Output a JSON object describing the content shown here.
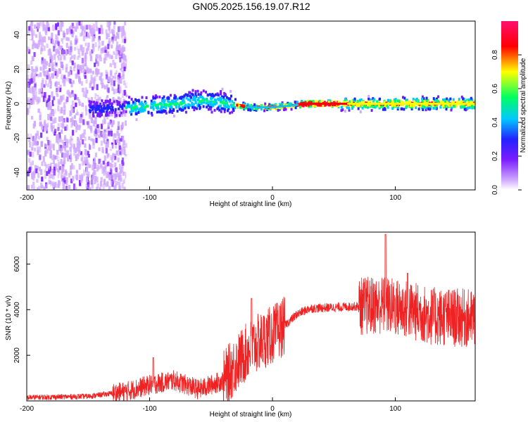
{
  "title": "GN05.2025.156.19.07.R12",
  "chart_data": [
    {
      "type": "heatmap",
      "xlabel": "Height of straight line (km)",
      "ylabel": "Frequency (Hz)",
      "xlim": [
        -200,
        165
      ],
      "ylim": [
        -50,
        48
      ],
      "xticks": [
        -200,
        -100,
        0,
        100
      ],
      "yticks": [
        -40,
        -20,
        0,
        20,
        40
      ],
      "colorbar": {
        "label": "Normalized spectral amplitude",
        "range": [
          0,
          1
        ],
        "ticks": [
          "0.0",
          "0.2",
          "0.4",
          "0.6",
          "0.8"
        ],
        "colors": [
          "#ffffff",
          "#cfa8ff",
          "#7a1cff",
          "#2222ff",
          "#00c8ff",
          "#00ff60",
          "#ffff00",
          "#ff0000",
          "#ff1070"
        ]
      },
      "band_center_hz": [
        {
          "x": -145,
          "y": -3
        },
        {
          "x": -110,
          "y": -2
        },
        {
          "x": -80,
          "y": 0
        },
        {
          "x": -55,
          "y": 2
        },
        {
          "x": -35,
          "y": 0
        },
        {
          "x": -20,
          "y": -2
        },
        {
          "x": 0,
          "y": -2
        },
        {
          "x": 30,
          "y": 0
        },
        {
          "x": 80,
          "y": 0
        },
        {
          "x": 160,
          "y": 0
        }
      ]
    },
    {
      "type": "line",
      "xlabel": "Height of straight line (km)",
      "ylabel": "SNR (10 * v/v)",
      "xlim": [
        -200,
        165
      ],
      "ylim": [
        0,
        7400
      ],
      "xticks": [
        -200,
        -100,
        0,
        100
      ],
      "yticks": [
        2000,
        4000,
        6000
      ],
      "series_color": "#ee2222",
      "trend": [
        {
          "x": -200,
          "y": 150
        },
        {
          "x": -150,
          "y": 200
        },
        {
          "x": -120,
          "y": 400
        },
        {
          "x": -100,
          "y": 700
        },
        {
          "x": -80,
          "y": 900
        },
        {
          "x": -60,
          "y": 500
        },
        {
          "x": -40,
          "y": 900
        },
        {
          "x": -30,
          "y": 1600
        },
        {
          "x": -20,
          "y": 2200
        },
        {
          "x": -10,
          "y": 2600
        },
        {
          "x": 0,
          "y": 2900
        },
        {
          "x": 10,
          "y": 3300
        },
        {
          "x": 20,
          "y": 3800
        },
        {
          "x": 30,
          "y": 4050
        },
        {
          "x": 50,
          "y": 4100
        },
        {
          "x": 70,
          "y": 4150
        },
        {
          "x": 90,
          "y": 4200
        },
        {
          "x": 110,
          "y": 4000
        },
        {
          "x": 130,
          "y": 3700
        },
        {
          "x": 165,
          "y": 3600
        }
      ],
      "peaks": [
        {
          "x": -97,
          "y": 1900
        },
        {
          "x": -17,
          "y": 4500
        },
        {
          "x": 92,
          "y": 7300
        },
        {
          "x": 110,
          "y": 5600
        }
      ]
    }
  ]
}
